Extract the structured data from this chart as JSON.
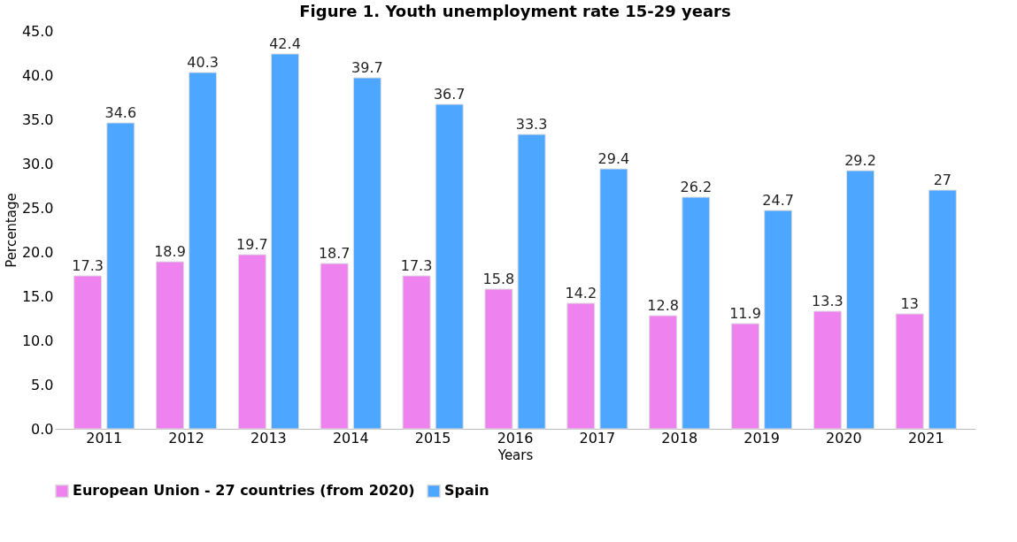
{
  "chart_data": {
    "type": "bar",
    "title": "Figure 1. Youth unemployment rate 15-29 years",
    "xlabel": "Years",
    "ylabel": "Percentage",
    "categories": [
      "2011",
      "2012",
      "2013",
      "2014",
      "2015",
      "2016",
      "2017",
      "2018",
      "2019",
      "2020",
      "2021"
    ],
    "series": [
      {
        "name": "European Union - 27 countries (from 2020)",
        "color": "#ee82ee",
        "values": [
          17.3,
          18.9,
          19.7,
          18.7,
          17.3,
          15.8,
          14.2,
          12.8,
          11.9,
          13.3,
          13
        ]
      },
      {
        "name": "Spain",
        "color": "#4da6ff",
        "values": [
          34.6,
          40.3,
          42.4,
          39.7,
          36.7,
          33.3,
          29.4,
          26.2,
          24.7,
          29.2,
          27
        ]
      }
    ],
    "ylim": [
      0,
      45
    ],
    "yticks": [
      {
        "value": 0,
        "label": "0.0"
      },
      {
        "value": 5,
        "label": "5.0"
      },
      {
        "value": 10,
        "label": "10.0"
      },
      {
        "value": 15,
        "label": "15.0"
      },
      {
        "value": 20,
        "label": "20.0"
      },
      {
        "value": 25,
        "label": "25.0"
      },
      {
        "value": 30,
        "label": "30.0"
      },
      {
        "value": 35,
        "label": "35.0"
      },
      {
        "value": 40,
        "label": "40.0"
      },
      {
        "value": 45,
        "label": "45.0"
      }
    ],
    "grid": false,
    "legend": "bottom",
    "data_labels": true
  }
}
